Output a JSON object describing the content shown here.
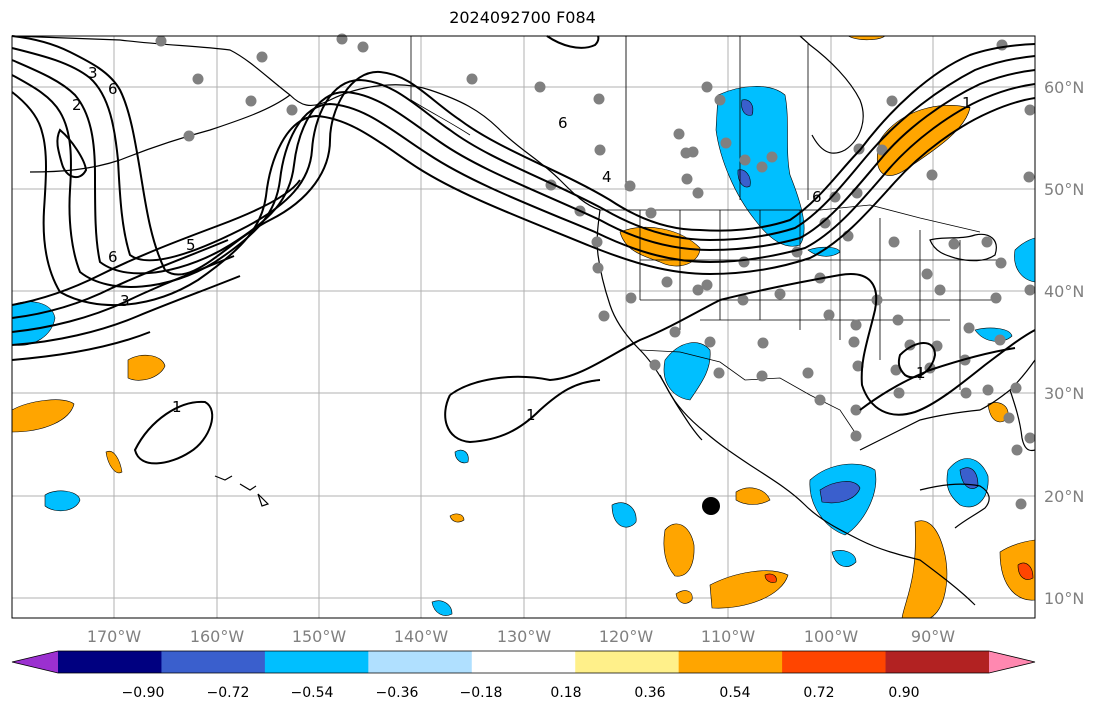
{
  "title": "2024092700 F084",
  "lat_labels": [
    "60°N",
    "50°N",
    "40°N",
    "30°N",
    "20°N",
    "10°N"
  ],
  "lon_labels": [
    "170°W",
    "160°W",
    "150°W",
    "140°W",
    "130°W",
    "120°W",
    "110°W",
    "100°W",
    "90°W"
  ],
  "colorbar": {
    "colors": [
      "#9b30d0",
      "#000080",
      "#3a5fcd",
      "#00bfff",
      "#b0e0ff",
      "#ffffff",
      "#fff08a",
      "#ffa500",
      "#ff4500",
      "#b22222",
      "#ff88b0"
    ],
    "tick_labels": [
      "−0.90",
      "−0.72",
      "−0.54",
      "−0.36",
      "−0.18",
      "0.18",
      "0.36",
      "0.54",
      "0.72",
      "0.90"
    ]
  },
  "contour_labels": [
    "3",
    "2",
    "6",
    "6",
    "5",
    "3",
    "6",
    "4",
    "1",
    "1",
    "1",
    "6",
    "1"
  ],
  "map_colors": {
    "positive": "#ffa500",
    "positive_strong": "#ff4500",
    "negative": "#00bfff",
    "negative_strong": "#3a5fcd",
    "stations": "#808080",
    "marker": "#000000",
    "grid": "#b0b0b0"
  }
}
